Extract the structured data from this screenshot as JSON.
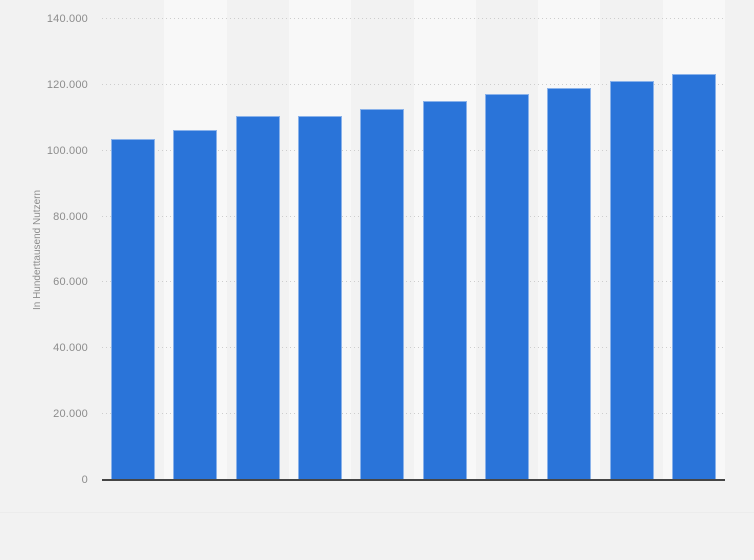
{
  "page": {
    "background": "#f2f2f2"
  },
  "chart_data": {
    "type": "bar",
    "title": "",
    "xlabel": "",
    "ylabel": "In Hunderttausend Nutzern",
    "ylim": [
      0,
      140000
    ],
    "grid": "horizontal-dotted",
    "legend": "none",
    "x_axis_labels": [],
    "values": [
      103200,
      105900,
      110200,
      110300,
      112500,
      114900,
      117000,
      118800,
      121000,
      122900
    ],
    "yticks": [
      {
        "value": 0,
        "label": "0"
      },
      {
        "value": 20000,
        "label": "20.000"
      },
      {
        "value": 40000,
        "label": "40.000"
      },
      {
        "value": 60000,
        "label": "60.000"
      },
      {
        "value": 80000,
        "label": "80.000"
      },
      {
        "value": 100000,
        "label": "100.000"
      },
      {
        "value": 120000,
        "label": "120.000"
      },
      {
        "value": 140000,
        "label": "140.000"
      }
    ],
    "colors": {
      "bar": "#2a74d9",
      "band_light": "#f8f8f8",
      "band_dark": "#f2f2f2",
      "gridline": "#cdcdcd",
      "axis_line": "#454545",
      "tick_text": "#8c8c8c"
    }
  }
}
